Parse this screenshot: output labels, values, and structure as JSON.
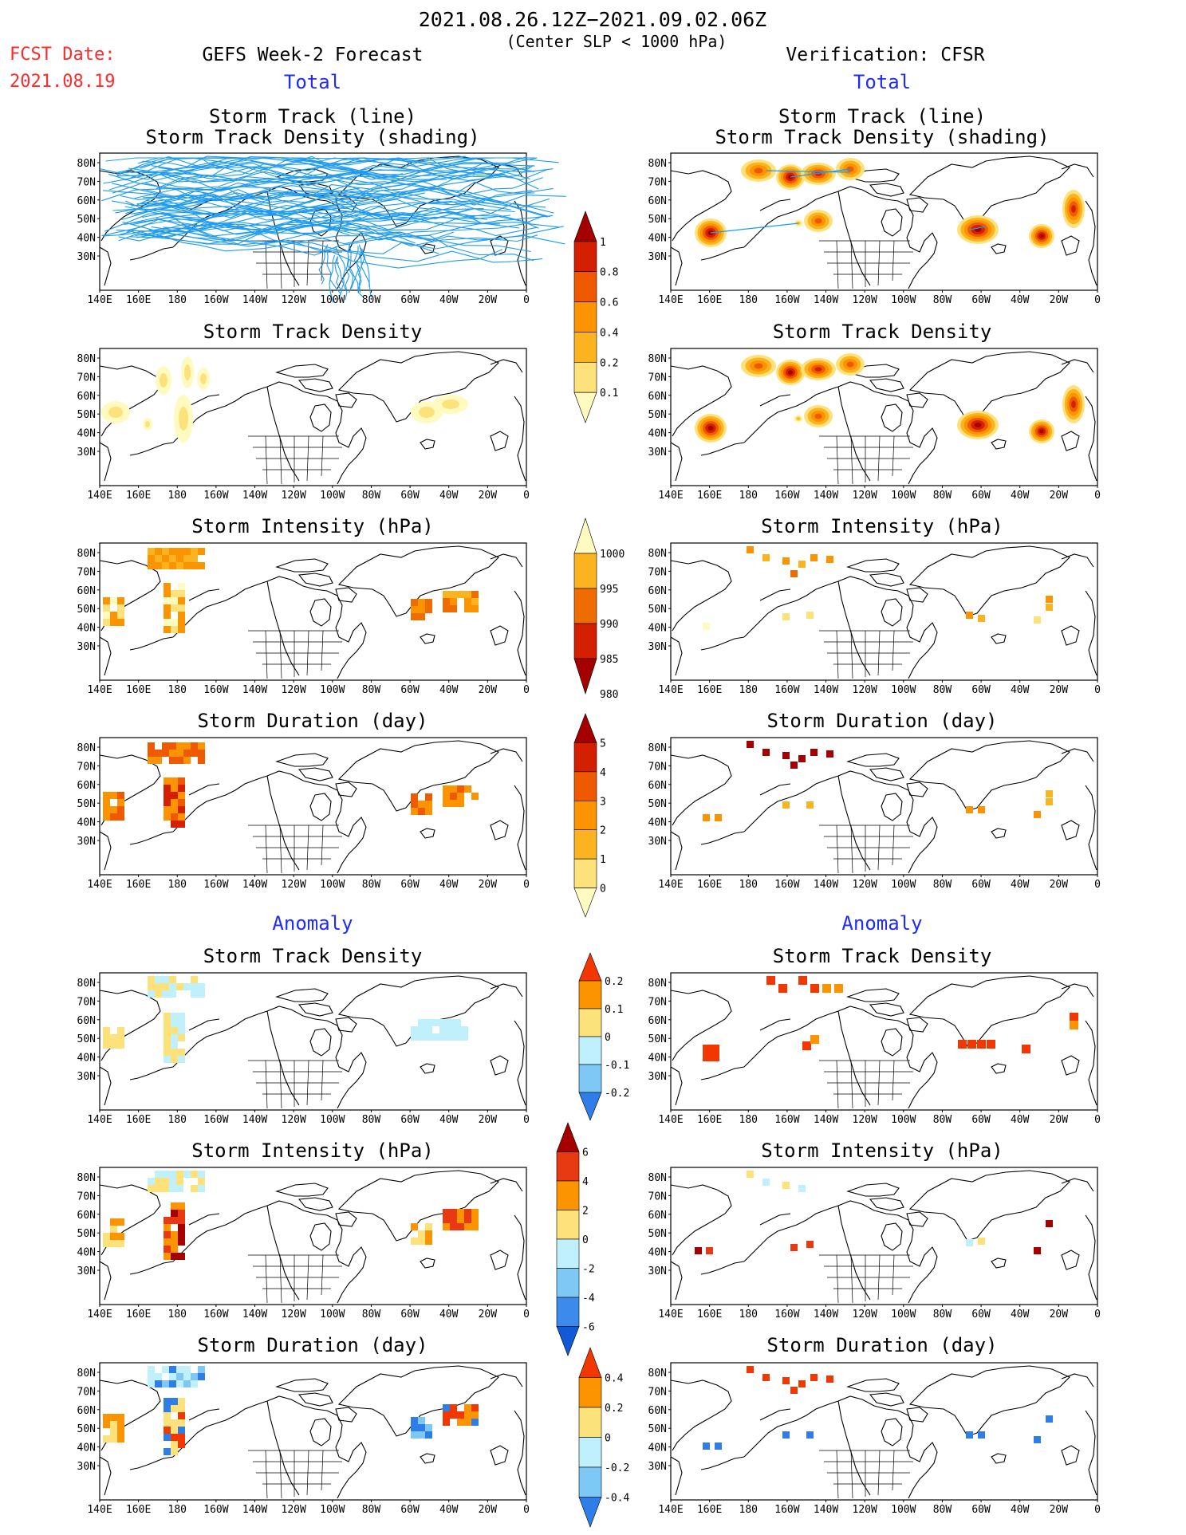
{
  "header": {
    "date_range": "2021.08.26.12Z−2021.09.02.06Z",
    "criterion": "(Center SLP < 1000 hPa)",
    "fcst_date_label": "FCST Date:",
    "fcst_date_value": "2021.08.19",
    "forecast_title": "GEFS Week-2 Forecast",
    "verification_title": "Verification: CFSR",
    "total_left": "Total",
    "total_right": "Total",
    "anomaly_left": "Anomaly",
    "anomaly_right": "Anomaly"
  },
  "panel_titles": {
    "track_line": "Storm Track (line)",
    "track_shading": "Storm Track Density (shading)",
    "density": "Storm Track Density",
    "intensity": "Storm Intensity (hPa)",
    "duration": "Storm Duration (day)"
  },
  "map_axes": {
    "lon_labels": [
      "140E",
      "160E",
      "180",
      "160W",
      "140W",
      "120W",
      "100W",
      "80W",
      "60W",
      "40W",
      "20W",
      "0"
    ],
    "lat_labels": [
      "80N",
      "70N",
      "60N",
      "50N",
      "40N",
      "30N"
    ]
  },
  "colorbars": {
    "density_total": {
      "labels": [
        "1",
        "0.8",
        "0.6",
        "0.4",
        "0.2",
        "0.1"
      ],
      "colors": [
        "#a50000",
        "#d42000",
        "#ef5a00",
        "#fb9400",
        "#fbb41f",
        "#fde27c",
        "#fffbc0"
      ]
    },
    "intensity_total": {
      "labels": [
        "1000",
        "995",
        "990",
        "985",
        "980"
      ],
      "colors": [
        "#fffbc0",
        "#fbb41f",
        "#ef6c00",
        "#d42000",
        "#a50000"
      ]
    },
    "duration_total": {
      "labels": [
        "5",
        "4",
        "3",
        "2",
        "1",
        "0"
      ],
      "colors": [
        "#a50000",
        "#d42000",
        "#ef5a00",
        "#fb9400",
        "#fbb41f",
        "#fde27c",
        "#fffbc0"
      ]
    },
    "density_anomaly": {
      "labels": [
        "0.2",
        "0.1",
        "0",
        "-0.1",
        "-0.2"
      ],
      "colors": [
        "#f23800",
        "#fb9400",
        "#fde27c",
        "#bff0fc",
        "#7dc8f5",
        "#2f7ee8"
      ]
    },
    "intensity_anomaly": {
      "labels": [
        "6",
        "4",
        "2",
        "0",
        "-2",
        "-4",
        "-6"
      ],
      "colors": [
        "#a50000",
        "#e83a10",
        "#fb9400",
        "#fde27c",
        "#bff0fc",
        "#7dc8f5",
        "#3c8bec",
        "#1259d8"
      ]
    },
    "duration_anomaly": {
      "labels": [
        "0.4",
        "0.2",
        "0",
        "-0.2",
        "-0.4"
      ],
      "colors": [
        "#f23800",
        "#fb9400",
        "#fde27c",
        "#bff0fc",
        "#7dc8f5",
        "#2f7ee8"
      ]
    }
  },
  "colors": {
    "track_line": "#1e9bf0",
    "accent_red": "#ff2a2a",
    "accent_blue": "#1e2bff"
  }
}
